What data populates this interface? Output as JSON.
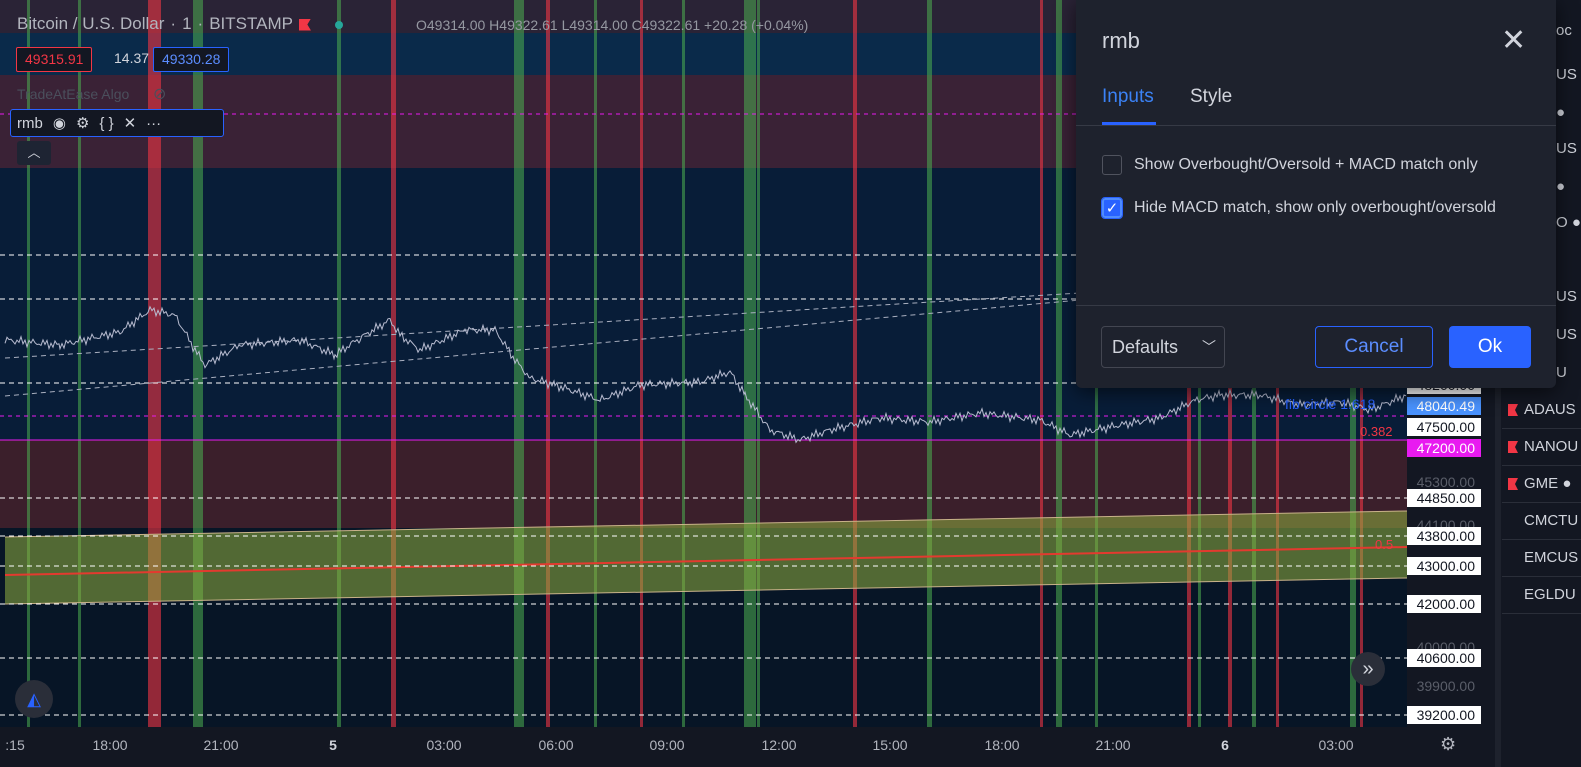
{
  "header": {
    "symbol": "Bitcoin / U.S. Dollar",
    "interval": "1",
    "exchange": "BITSTAMP",
    "ohlc": "O49314.00  H49322.61  L49314.00  C49322.61  +20.28 (+0.04%)"
  },
  "prices": {
    "bid": "49315.91",
    "spread": "14.37",
    "ask": "49330.28"
  },
  "indicators": {
    "algo_name": "TradeAtEase Algo",
    "rmb_name": "rmb"
  },
  "price_axis": [
    {
      "text": "48040.49",
      "style": "blue"
    },
    {
      "text": "47500.00",
      "style": "white"
    },
    {
      "text": "47200.00",
      "style": "magenta"
    },
    {
      "text": "45300.00",
      "style": "dim"
    },
    {
      "text": "44850.00",
      "style": "white"
    },
    {
      "text": "44100.00",
      "style": "dim"
    },
    {
      "text": "43800.00",
      "style": "white"
    },
    {
      "text": "43000.00",
      "style": "white"
    },
    {
      "text": "42000.00",
      "style": "white"
    },
    {
      "text": "40000.00",
      "style": "dim"
    },
    {
      "text": "40600.00",
      "style": "white"
    },
    {
      "text": "39900.00",
      "style": "dim"
    },
    {
      "text": "39200.00",
      "style": "white"
    },
    {
      "text": "48200.00",
      "style": "white"
    }
  ],
  "time_axis": [
    {
      "label": ":15",
      "bold": false
    },
    {
      "label": "18:00",
      "bold": false
    },
    {
      "label": "21:00",
      "bold": false
    },
    {
      "label": "5",
      "bold": true
    },
    {
      "label": "03:00",
      "bold": false
    },
    {
      "label": "06:00",
      "bold": false
    },
    {
      "label": "09:00",
      "bold": false
    },
    {
      "label": "12:00",
      "bold": false
    },
    {
      "label": "15:00",
      "bold": false
    },
    {
      "label": "18:00",
      "bold": false
    },
    {
      "label": "21:00",
      "bold": false
    },
    {
      "label": "6",
      "bold": true
    },
    {
      "label": "03:00",
      "bold": false
    }
  ],
  "annotations": {
    "fib_label": "fib circle 1.618",
    "fib_382": "0.382",
    "fib_05": "0.5"
  },
  "watchlist": [
    {
      "label": "ADAUS",
      "flag": true
    },
    {
      "label": "NANOU",
      "flag": true
    },
    {
      "label": "GME ●",
      "flag": true
    },
    {
      "label": "CMCTU",
      "flag": false
    },
    {
      "label": "EMCUS",
      "flag": false
    },
    {
      "label": "EGLDU",
      "flag": false
    }
  ],
  "side_partial": [
    "oc",
    "US",
    "●",
    "US",
    "●",
    "O ●",
    "US",
    "US",
    "U"
  ],
  "dialog": {
    "title": "rmb",
    "tabs": {
      "inputs": "Inputs",
      "style": "Style"
    },
    "options": [
      {
        "label": "Show Overbought/Oversold + MACD match only",
        "checked": false
      },
      {
        "label": "Hide MACD match, show only overbought/oversold",
        "checked": true
      }
    ],
    "defaults_label": "Defaults",
    "cancel_label": "Cancel",
    "ok_label": "Ok"
  },
  "colors": {
    "accent": "#2962ff",
    "red": "#f23645",
    "green": "#4caf50",
    "magenta": "#e81bf0"
  }
}
